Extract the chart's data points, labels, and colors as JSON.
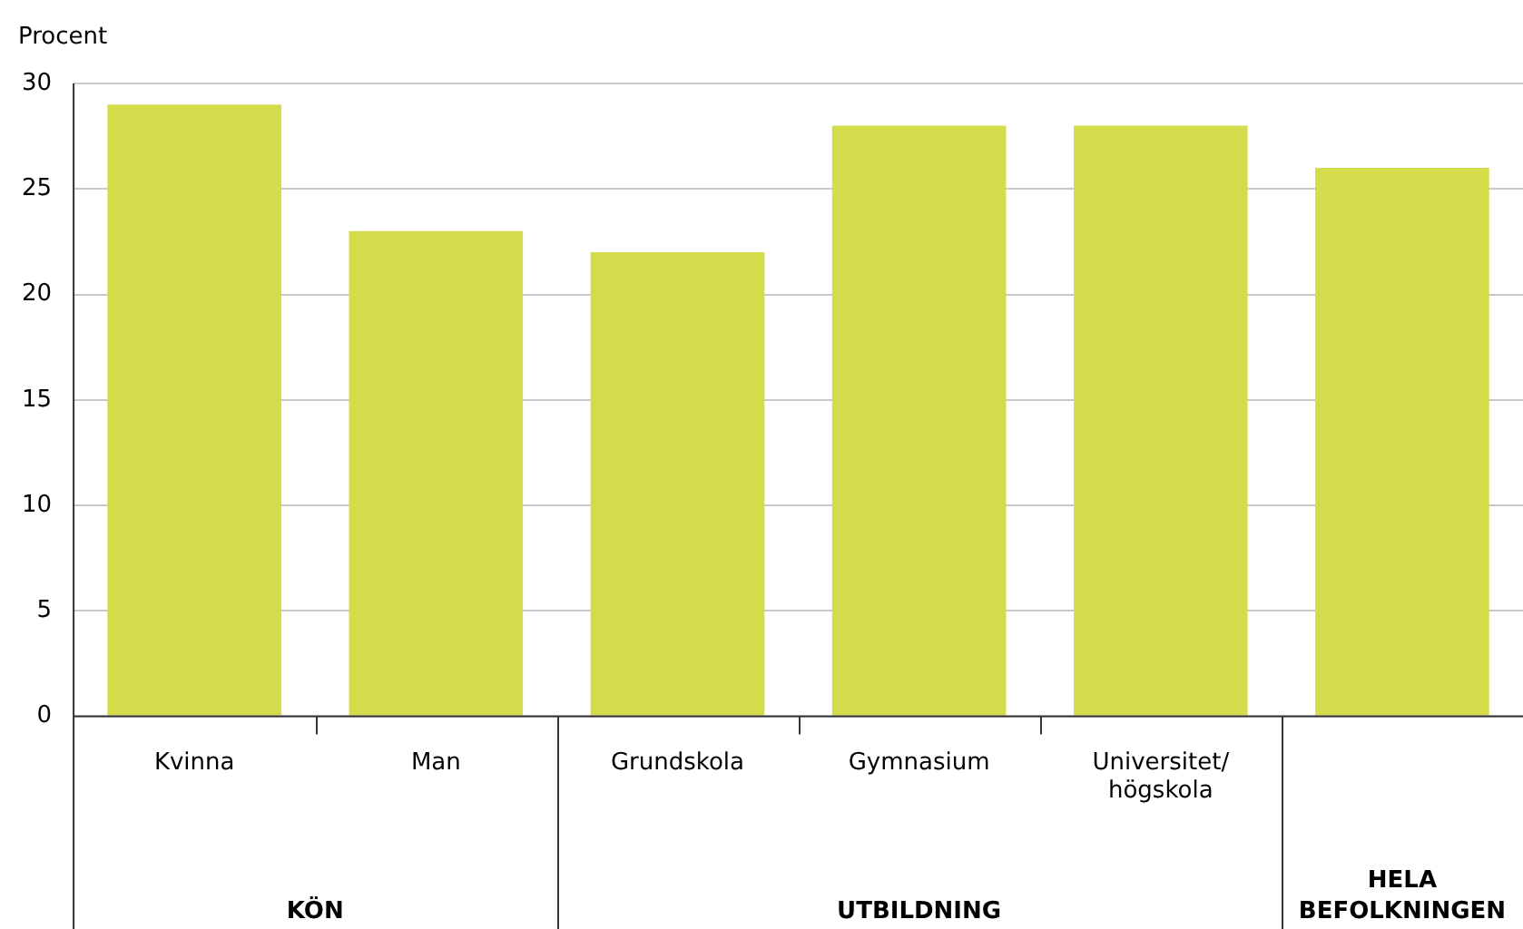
{
  "chart_data": {
    "type": "bar",
    "ylabel": "Procent",
    "categories": [
      "Kvinna",
      "Man",
      "Grundskola",
      "Gymnasium",
      "Universitet/högskola",
      null
    ],
    "values": [
      29,
      23,
      22,
      28,
      28,
      26
    ],
    "color": "#d4dc4c",
    "ylim": [
      0,
      30
    ],
    "yticks": [
      0,
      5,
      10,
      15,
      20,
      25,
      30
    ],
    "grid": "y",
    "annotations": [
      "KÖN",
      "UTBILDNING",
      "HELA BEFOLKNINGEN"
    ]
  }
}
